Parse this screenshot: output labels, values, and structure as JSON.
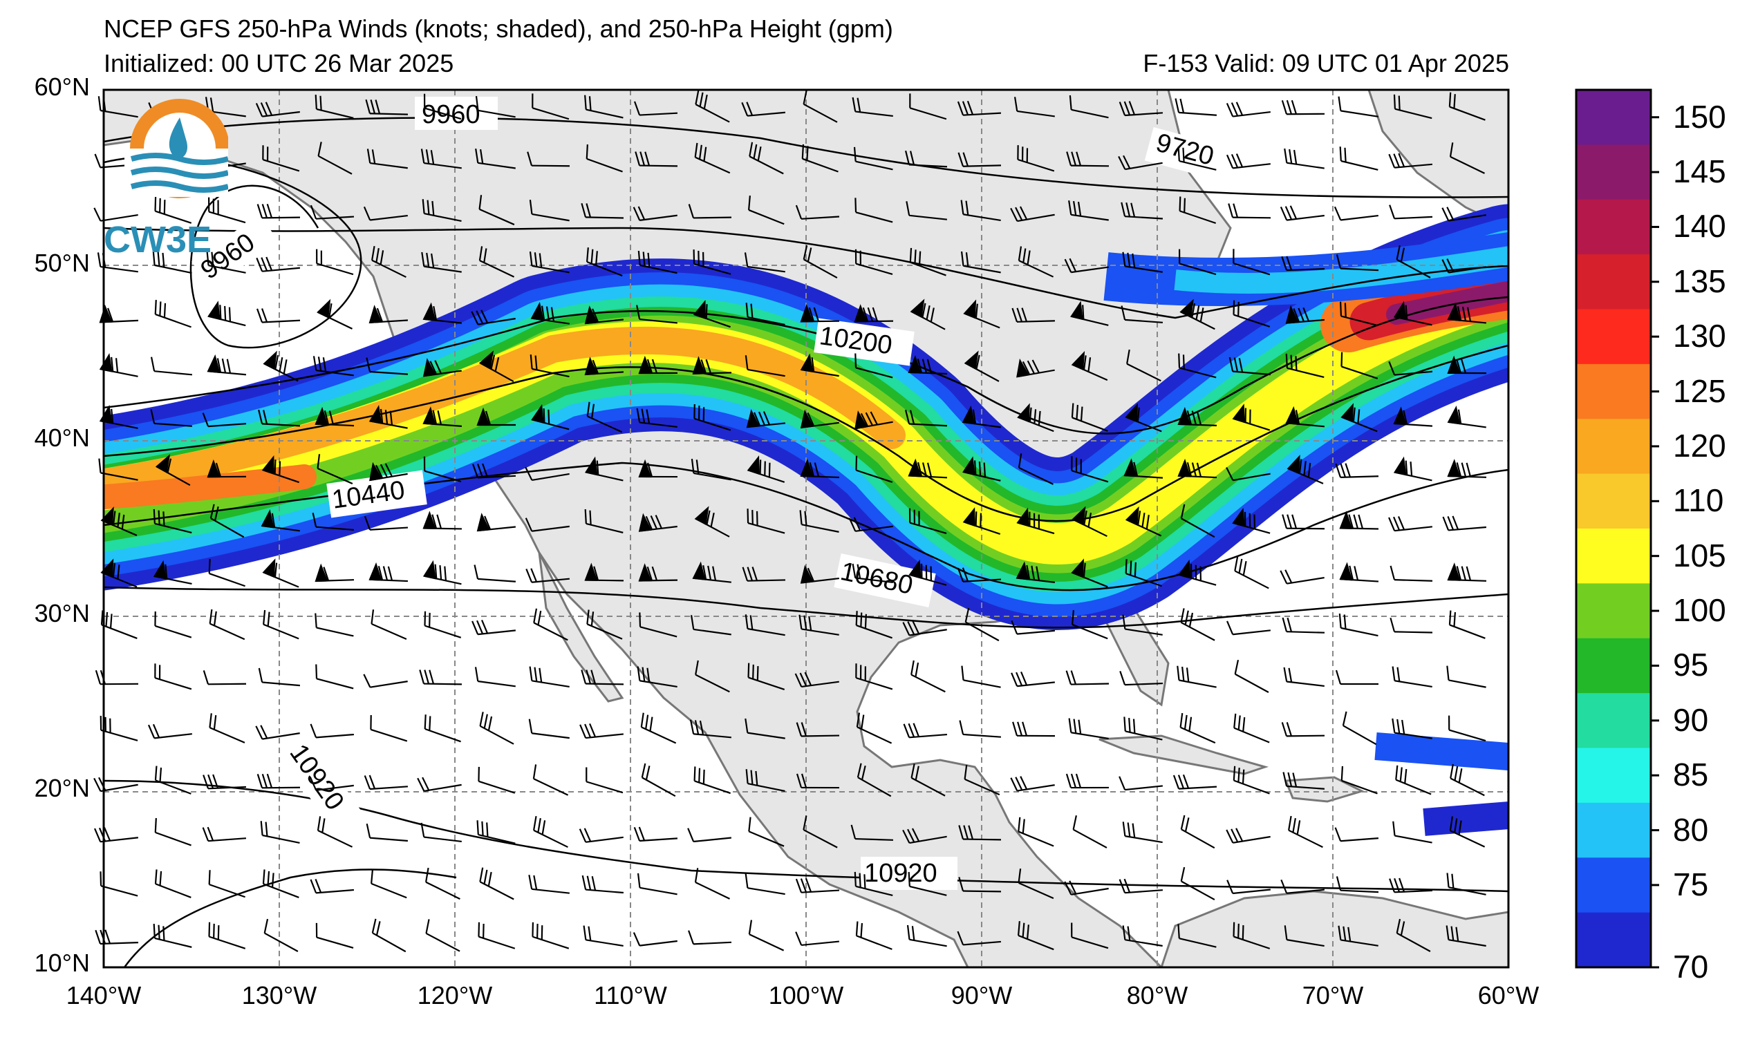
{
  "header": {
    "title": "NCEP GFS 250-hPa Winds (knots; shaded), and 250-hPa Height (gpm)",
    "initialized": "Initialized: 00 UTC 26 Mar 2025",
    "valid": "F-153  Valid: 09 UTC 01 Apr 2025"
  },
  "logo": {
    "text": "CW3E",
    "icon": "water-drop-sun-logo-icon"
  },
  "axes": {
    "lat_labels": [
      "60°N",
      "50°N",
      "40°N",
      "30°N",
      "20°N",
      "10°N"
    ],
    "lon_labels": [
      "140°W",
      "130°W",
      "120°W",
      "110°W",
      "100°W",
      "90°W",
      "80°W",
      "70°W",
      "60°W"
    ]
  },
  "contour_labels": [
    "9960",
    "9720",
    "9960",
    "10200",
    "10440",
    "10680",
    "10920",
    "10920"
  ],
  "colorbar": {
    "labels": [
      "150",
      "145",
      "140",
      "135",
      "130",
      "125",
      "120",
      "110",
      "105",
      "100",
      "95",
      "90",
      "85",
      "80",
      "75",
      "70"
    ],
    "colors": [
      "#6a1d8f",
      "#8c1a6a",
      "#b5184b",
      "#d6202b",
      "#ff2a1e",
      "#f97a20",
      "#f9a820",
      "#f9c82a",
      "#fffd20",
      "#72cf22",
      "#22b82a",
      "#22dca0",
      "#25f5e8",
      "#23c3f7",
      "#1a52f3",
      "#1f28cf"
    ]
  },
  "chart_data": {
    "type": "map",
    "lon_range": [
      -140,
      -60
    ],
    "lat_range": [
      10,
      60
    ],
    "wind_speed_units": "knots",
    "height_units": "gpm",
    "forecast_hour": "F-153"
  }
}
